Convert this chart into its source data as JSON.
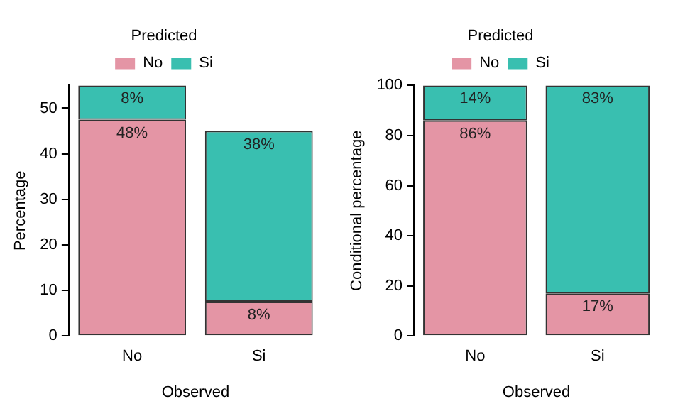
{
  "chart_data": [
    {
      "type": "bar",
      "stacked": true,
      "categories": [
        "No",
        "Si"
      ],
      "xlabel": "Observed",
      "ylabel": "Percentage",
      "legend_title": "Predicted",
      "legend": "top",
      "grid": false,
      "ylim": [
        0,
        55
      ],
      "yticks": [
        0,
        10,
        20,
        30,
        40,
        50
      ],
      "series": [
        {
          "name": "No",
          "color": "#e495a5",
          "values": [
            47.5,
            7.5
          ],
          "value_labels": [
            "48%",
            "8%"
          ]
        },
        {
          "name": "Si",
          "color": "#39bfb0",
          "values": [
            7.5,
            37.5
          ],
          "value_labels": [
            "8%",
            "38%"
          ]
        }
      ]
    },
    {
      "type": "bar",
      "stacked": true,
      "categories": [
        "No",
        "Si"
      ],
      "xlabel": "Observed",
      "ylabel": "Conditional percentage",
      "legend_title": "Predicted",
      "legend": "top",
      "grid": false,
      "ylim": [
        0,
        100
      ],
      "yticks": [
        0,
        20,
        40,
        60,
        80,
        100
      ],
      "series": [
        {
          "name": "No",
          "color": "#e495a5",
          "values": [
            86,
            17
          ],
          "value_labels": [
            "86%",
            "17%"
          ]
        },
        {
          "name": "Si",
          "color": "#39bfb0",
          "values": [
            14,
            83
          ],
          "value_labels": [
            "14%",
            "83%"
          ]
        }
      ]
    }
  ]
}
